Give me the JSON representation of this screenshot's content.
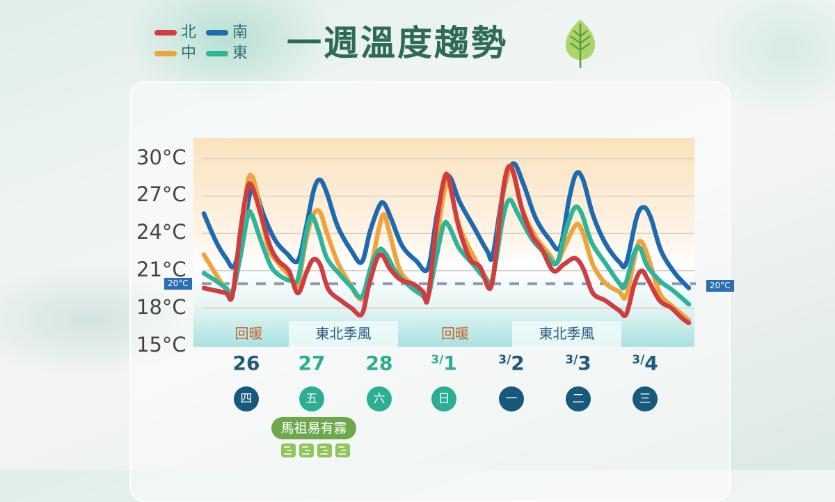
{
  "title": "一週溫度趨勢",
  "legend": [
    {
      "label": "北",
      "color": "#cf3d3f"
    },
    {
      "label": "南",
      "color": "#1e6ab0"
    },
    {
      "label": "中",
      "color": "#efa33a"
    },
    {
      "label": "東",
      "color": "#2db59b"
    }
  ],
  "reference_line": {
    "label": "20°C",
    "value": 20
  },
  "periods": [
    {
      "label": "回暖",
      "type": "warm"
    },
    {
      "label": "東北季風",
      "type": "monsoon"
    },
    {
      "label": "回暖",
      "type": "warm"
    },
    {
      "label": "東北季風",
      "type": "monsoon"
    }
  ],
  "days": [
    {
      "date": "26",
      "prefix": "",
      "weekday": "四",
      "color": "#17597d",
      "date_color": "#1f5a7c"
    },
    {
      "date": "27",
      "prefix": "",
      "weekday": "五",
      "color": "#2bae92",
      "date_color": "#2bae92"
    },
    {
      "date": "28",
      "prefix": "",
      "weekday": "六",
      "color": "#2bae92",
      "date_color": "#2bae92"
    },
    {
      "date": "1",
      "prefix": "3/",
      "weekday": "日",
      "color": "#2bae92",
      "date_color": "#2bae92"
    },
    {
      "date": "2",
      "prefix": "3/",
      "weekday": "一",
      "color": "#17597d",
      "date_color": "#1f5a7c"
    },
    {
      "date": "3",
      "prefix": "3/",
      "weekday": "二",
      "color": "#17597d",
      "date_color": "#1f5a7c"
    },
    {
      "date": "4",
      "prefix": "3/",
      "weekday": "三",
      "color": "#17597d",
      "date_color": "#1f5a7c"
    }
  ],
  "notice": {
    "label": "馬祖易有霧",
    "icon": "fog-icon",
    "icon_count": 4
  },
  "chart_data": {
    "type": "line",
    "title": "一週溫度趨勢",
    "xlabel": "",
    "ylabel": "",
    "yticks": [
      "30°C",
      "27°C",
      "24°C",
      "21°C",
      "18°C",
      "15°C"
    ],
    "ylim": [
      15,
      30
    ],
    "grid": true,
    "legend_position": "top-left",
    "categories": [
      "26(四)",
      "27(五)",
      "28(六)",
      "3/1(日)",
      "3/2(一)",
      "3/3(二)",
      "3/4(三)"
    ],
    "x_unit": "pixel position along time axis (3-hourly approx.)",
    "series": [
      {
        "name": "南",
        "color": "#1e6ab0",
        "points": [
          [
            293,
            25.6
          ],
          [
            310,
            23.4
          ],
          [
            325,
            22.0
          ],
          [
            337,
            21.4
          ],
          [
            350,
            24.5
          ],
          [
            360,
            27.4
          ],
          [
            366,
            27.7
          ],
          [
            378,
            25.6
          ],
          [
            395,
            23.5
          ],
          [
            412,
            22.4
          ],
          [
            428,
            21.8
          ],
          [
            440,
            24.5
          ],
          [
            451,
            27.5
          ],
          [
            460,
            28.3
          ],
          [
            470,
            27.2
          ],
          [
            485,
            24.6
          ],
          [
            505,
            22.6
          ],
          [
            520,
            21.7
          ],
          [
            532,
            24.2
          ],
          [
            545,
            26.2
          ],
          [
            552,
            26.4
          ],
          [
            562,
            25.2
          ],
          [
            578,
            23.0
          ],
          [
            598,
            21.8
          ],
          [
            615,
            21.2
          ],
          [
            628,
            25.5
          ],
          [
            640,
            28.3
          ],
          [
            648,
            28.4
          ],
          [
            660,
            26.6
          ],
          [
            680,
            24.6
          ],
          [
            700,
            22.6
          ],
          [
            708,
            22.2
          ],
          [
            722,
            27.0
          ],
          [
            737,
            29.6
          ],
          [
            752,
            28.0
          ],
          [
            770,
            25.2
          ],
          [
            790,
            23.5
          ],
          [
            805,
            22.9
          ],
          [
            818,
            26.8
          ],
          [
            828,
            28.8
          ],
          [
            838,
            28.3
          ],
          [
            852,
            25.5
          ],
          [
            870,
            23.2
          ],
          [
            890,
            21.7
          ],
          [
            900,
            21.6
          ],
          [
            915,
            25.3
          ],
          [
            925,
            26.1
          ],
          [
            935,
            25.3
          ],
          [
            950,
            22.6
          ],
          [
            970,
            20.8
          ],
          [
            990,
            19.6
          ]
        ]
      },
      {
        "name": "中",
        "color": "#efa33a",
        "points": [
          [
            293,
            22.3
          ],
          [
            305,
            21.2
          ],
          [
            320,
            19.9
          ],
          [
            334,
            19.2
          ],
          [
            345,
            22.5
          ],
          [
            355,
            27.8
          ],
          [
            362,
            28.6
          ],
          [
            370,
            27.0
          ],
          [
            385,
            23.0
          ],
          [
            400,
            21.6
          ],
          [
            418,
            20.5
          ],
          [
            428,
            19.9
          ],
          [
            440,
            23.5
          ],
          [
            450,
            25.5
          ],
          [
            460,
            25.7
          ],
          [
            470,
            24.0
          ],
          [
            485,
            21.7
          ],
          [
            500,
            20.2
          ],
          [
            520,
            18.7
          ],
          [
            532,
            21.0
          ],
          [
            545,
            24.5
          ],
          [
            552,
            25.5
          ],
          [
            560,
            24.0
          ],
          [
            575,
            21.0
          ],
          [
            595,
            19.8
          ],
          [
            615,
            19.0
          ],
          [
            625,
            22.5
          ],
          [
            638,
            27.3
          ],
          [
            645,
            28.0
          ],
          [
            660,
            24.6
          ],
          [
            680,
            22.2
          ],
          [
            697,
            20.6
          ],
          [
            708,
            20.2
          ],
          [
            722,
            27.0
          ],
          [
            736,
            29.1
          ],
          [
            750,
            26.0
          ],
          [
            770,
            23.7
          ],
          [
            790,
            22.3
          ],
          [
            800,
            21.6
          ],
          [
            812,
            23.0
          ],
          [
            828,
            24.7
          ],
          [
            838,
            24.0
          ],
          [
            852,
            21.5
          ],
          [
            870,
            20.0
          ],
          [
            890,
            19.3
          ],
          [
            900,
            19.0
          ],
          [
            915,
            22.8
          ],
          [
            922,
            23.3
          ],
          [
            932,
            22.0
          ],
          [
            948,
            19.2
          ],
          [
            965,
            18.2
          ],
          [
            980,
            17.5
          ],
          [
            990,
            17.0
          ]
        ]
      },
      {
        "name": "東",
        "color": "#2db59b",
        "points": [
          [
            293,
            20.8
          ],
          [
            310,
            20.2
          ],
          [
            325,
            19.6
          ],
          [
            334,
            19.3
          ],
          [
            345,
            22.0
          ],
          [
            356,
            25.4
          ],
          [
            362,
            25.5
          ],
          [
            375,
            23.4
          ],
          [
            390,
            21.3
          ],
          [
            405,
            20.5
          ],
          [
            418,
            20.2
          ],
          [
            428,
            20.3
          ],
          [
            440,
            24.0
          ],
          [
            448,
            25.4
          ],
          [
            458,
            24.1
          ],
          [
            470,
            22.0
          ],
          [
            490,
            20.6
          ],
          [
            505,
            19.7
          ],
          [
            520,
            18.9
          ],
          [
            533,
            21.3
          ],
          [
            545,
            22.7
          ],
          [
            555,
            22.3
          ],
          [
            570,
            20.8
          ],
          [
            590,
            19.7
          ],
          [
            605,
            19.1
          ],
          [
            615,
            18.9
          ],
          [
            625,
            21.5
          ],
          [
            637,
            24.6
          ],
          [
            645,
            24.6
          ],
          [
            660,
            22.8
          ],
          [
            680,
            21.5
          ],
          [
            697,
            20.4
          ],
          [
            708,
            20.4
          ],
          [
            722,
            25.0
          ],
          [
            732,
            26.7
          ],
          [
            745,
            25.5
          ],
          [
            765,
            23.5
          ],
          [
            785,
            22.3
          ],
          [
            800,
            21.6
          ],
          [
            812,
            24.0
          ],
          [
            825,
            26.0
          ],
          [
            835,
            25.7
          ],
          [
            850,
            23.3
          ],
          [
            870,
            21.6
          ],
          [
            890,
            20.0
          ],
          [
            898,
            19.8
          ],
          [
            912,
            22.5
          ],
          [
            920,
            22.8
          ],
          [
            930,
            21.4
          ],
          [
            948,
            20.2
          ],
          [
            965,
            19.5
          ],
          [
            980,
            18.8
          ],
          [
            990,
            18.3
          ]
        ]
      },
      {
        "name": "北",
        "color": "#cf3d3f",
        "points": [
          [
            293,
            19.6
          ],
          [
            310,
            19.4
          ],
          [
            325,
            19.2
          ],
          [
            334,
            19.0
          ],
          [
            345,
            24.0
          ],
          [
            355,
            27.5
          ],
          [
            362,
            27.8
          ],
          [
            375,
            25.5
          ],
          [
            388,
            23.0
          ],
          [
            400,
            21.8
          ],
          [
            415,
            21.0
          ],
          [
            428,
            19.2
          ],
          [
            440,
            20.8
          ],
          [
            450,
            21.9
          ],
          [
            460,
            21.5
          ],
          [
            472,
            19.5
          ],
          [
            490,
            18.6
          ],
          [
            505,
            18.0
          ],
          [
            520,
            17.5
          ],
          [
            530,
            19.8
          ],
          [
            542,
            22.0
          ],
          [
            550,
            22.2
          ],
          [
            560,
            21.2
          ],
          [
            575,
            20.3
          ],
          [
            595,
            19.9
          ],
          [
            608,
            19.3
          ],
          [
            615,
            18.8
          ],
          [
            628,
            25.0
          ],
          [
            638,
            28.3
          ],
          [
            645,
            28.4
          ],
          [
            658,
            24.8
          ],
          [
            675,
            22.0
          ],
          [
            690,
            21.3
          ],
          [
            705,
            19.6
          ],
          [
            715,
            23.5
          ],
          [
            725,
            28.2
          ],
          [
            735,
            29.3
          ],
          [
            750,
            26.0
          ],
          [
            765,
            23.8
          ],
          [
            778,
            22.8
          ],
          [
            795,
            21.0
          ],
          [
            810,
            21.5
          ],
          [
            826,
            22.0
          ],
          [
            838,
            21.2
          ],
          [
            852,
            19.2
          ],
          [
            870,
            18.6
          ],
          [
            890,
            17.8
          ],
          [
            900,
            17.5
          ],
          [
            912,
            20.0
          ],
          [
            922,
            21.0
          ],
          [
            932,
            20.2
          ],
          [
            948,
            18.6
          ],
          [
            965,
            18.0
          ],
          [
            980,
            17.2
          ],
          [
            990,
            16.8
          ]
        ]
      }
    ]
  }
}
